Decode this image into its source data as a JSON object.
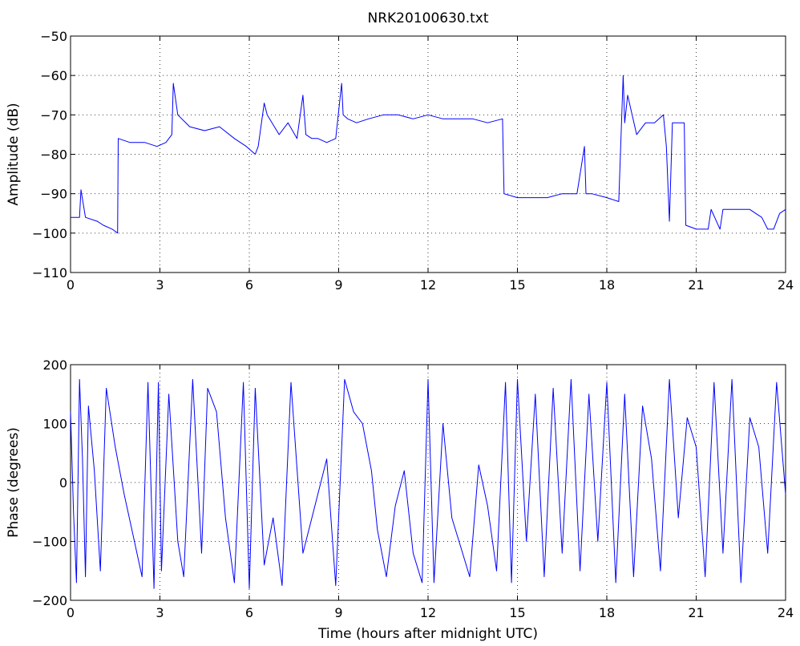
{
  "chart_data": [
    {
      "type": "line",
      "title": "NRK20100630.txt",
      "xlabel": "",
      "ylabel": "Amplitude (dB)",
      "xlim": [
        0,
        24
      ],
      "ylim": [
        -110,
        -50
      ],
      "xticks": [
        0,
        3,
        6,
        9,
        12,
        15,
        18,
        21,
        24
      ],
      "yticks": [
        -110,
        -100,
        -90,
        -80,
        -70,
        -60,
        -50
      ],
      "xtick_labels": [
        "0",
        "3",
        "6",
        "9",
        "12",
        "15",
        "18",
        "21",
        "24"
      ],
      "ytick_labels": [
        "−110",
        "−100",
        "−90",
        "−80",
        "−70",
        "−60",
        "−50"
      ],
      "grid": true,
      "series": [
        {
          "color": "#0000ff",
          "x": [
            0.0,
            0.3,
            0.35,
            0.5,
            0.9,
            1.1,
            1.4,
            1.58,
            1.6,
            2.0,
            2.5,
            2.9,
            3.2,
            3.4,
            3.45,
            3.6,
            4.0,
            4.5,
            5.0,
            5.5,
            5.9,
            6.2,
            6.3,
            6.5,
            6.6,
            7.0,
            7.3,
            7.6,
            7.8,
            7.9,
            8.1,
            8.3,
            8.6,
            8.9,
            9.1,
            9.15,
            9.3,
            9.6,
            10.0,
            10.5,
            11.0,
            11.5,
            12.0,
            12.5,
            13.0,
            13.5,
            14.0,
            14.5,
            14.55,
            15.0,
            15.5,
            16.0,
            16.5,
            17.0,
            17.25,
            17.3,
            17.5,
            18.0,
            18.4,
            18.55,
            18.6,
            18.7,
            19.0,
            19.3,
            19.6,
            19.9,
            20.0,
            20.1,
            20.2,
            20.4,
            20.6,
            20.65,
            21.0,
            21.4,
            21.5,
            21.8,
            21.9,
            22.2,
            22.5,
            22.8,
            23.0,
            23.2,
            23.4,
            23.6,
            23.8,
            24.0
          ],
          "y": [
            -96,
            -96,
            -89,
            -96,
            -97,
            -98,
            -99,
            -100,
            -76,
            -77,
            -77,
            -78,
            -77,
            -75,
            -62,
            -70,
            -73,
            -74,
            -73,
            -76,
            -78,
            -80,
            -78,
            -67,
            -70,
            -75,
            -72,
            -76,
            -65,
            -75,
            -76,
            -76,
            -77,
            -76,
            -62,
            -70,
            -71,
            -72,
            -71,
            -70,
            -70,
            -71,
            -70,
            -71,
            -71,
            -71,
            -72,
            -71,
            -90,
            -91,
            -91,
            -91,
            -90,
            -90,
            -78,
            -90,
            -90,
            -91,
            -92,
            -60,
            -72,
            -65,
            -75,
            -72,
            -72,
            -70,
            -78,
            -97,
            -72,
            -72,
            -72,
            -98,
            -99,
            -99,
            -94,
            -99,
            -94,
            -94,
            -94,
            -94,
            -95,
            -96,
            -99,
            -99,
            -95,
            -94
          ]
        }
      ]
    },
    {
      "type": "line",
      "title": "",
      "xlabel": "Time (hours after midnight UTC)",
      "ylabel": "Phase (degrees)",
      "xlim": [
        0,
        24
      ],
      "ylim": [
        -200,
        200
      ],
      "xticks": [
        0,
        3,
        6,
        9,
        12,
        15,
        18,
        21,
        24
      ],
      "yticks": [
        -200,
        -100,
        0,
        100,
        200
      ],
      "xtick_labels": [
        "0",
        "3",
        "6",
        "9",
        "12",
        "15",
        "18",
        "21",
        "24"
      ],
      "ytick_labels": [
        "−200",
        "−100",
        "0",
        "100",
        "200"
      ],
      "grid": true,
      "series": [
        {
          "color": "#0000ff",
          "x": [
            0.0,
            0.1,
            0.2,
            0.3,
            0.4,
            0.5,
            0.6,
            0.8,
            1.0,
            1.2,
            1.5,
            1.8,
            2.1,
            2.4,
            2.6,
            2.8,
            2.95,
            3.05,
            3.3,
            3.6,
            3.8,
            4.1,
            4.4,
            4.6,
            4.9,
            5.2,
            5.5,
            5.8,
            6.0,
            6.2,
            6.5,
            6.8,
            7.1,
            7.4,
            7.8,
            8.2,
            8.6,
            8.9,
            9.2,
            9.5,
            9.8,
            10.1,
            10.3,
            10.6,
            10.9,
            11.2,
            11.5,
            11.8,
            12.0,
            12.2,
            12.5,
            12.8,
            13.1,
            13.4,
            13.7,
            14.0,
            14.3,
            14.6,
            14.8,
            15.0,
            15.3,
            15.6,
            15.9,
            16.2,
            16.5,
            16.8,
            17.1,
            17.4,
            17.7,
            18.0,
            18.3,
            18.6,
            18.9,
            19.2,
            19.5,
            19.8,
            20.1,
            20.4,
            20.7,
            21.0,
            21.3,
            21.6,
            21.9,
            22.2,
            22.5,
            22.8,
            23.1,
            23.4,
            23.7,
            24.0
          ],
          "y": [
            120,
            -50,
            -170,
            175,
            40,
            -160,
            130,
            20,
            -150,
            160,
            60,
            -20,
            -90,
            -160,
            170,
            -180,
            170,
            -150,
            150,
            -100,
            -160,
            175,
            -120,
            160,
            120,
            -60,
            -170,
            170,
            -180,
            160,
            -140,
            -60,
            -175,
            170,
            -120,
            -40,
            40,
            -175,
            175,
            120,
            100,
            20,
            -80,
            -160,
            -40,
            20,
            -120,
            -170,
            175,
            -170,
            100,
            -60,
            -110,
            -160,
            30,
            -40,
            -150,
            170,
            -170,
            175,
            -100,
            150,
            -160,
            160,
            -120,
            175,
            -150,
            150,
            -100,
            170,
            -170,
            150,
            -160,
            130,
            40,
            -150,
            175,
            -60,
            110,
            60,
            -160,
            170,
            -120,
            175,
            -170,
            110,
            60,
            -120,
            170,
            -20
          ]
        }
      ]
    }
  ]
}
